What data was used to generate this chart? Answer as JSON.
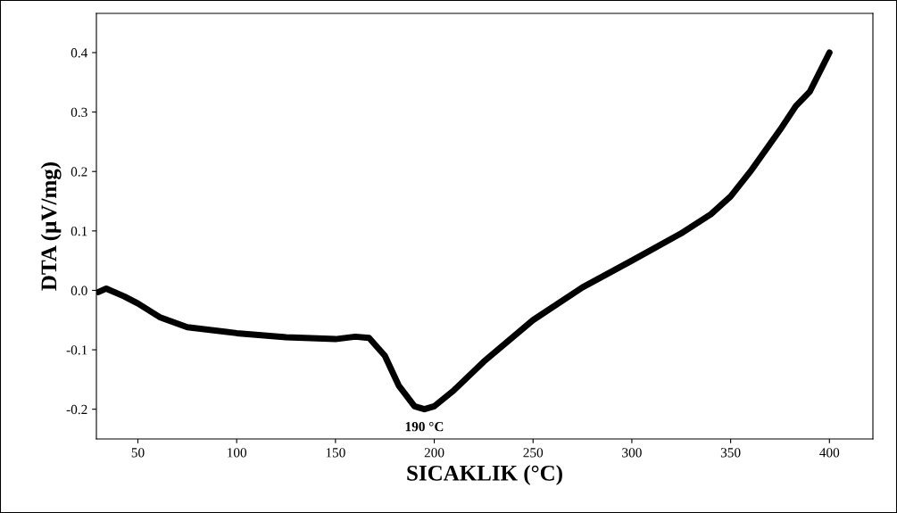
{
  "chart_data": {
    "type": "line",
    "xlabel": "SICAKLIK (°C)",
    "ylabel": "DTA (µV/mg)",
    "x": [
      30,
      34,
      43,
      50,
      61,
      75,
      100,
      125,
      150,
      160,
      167,
      175,
      182,
      190,
      195,
      200,
      210,
      225,
      250,
      275,
      300,
      325,
      340,
      350,
      360,
      375,
      383,
      390,
      400
    ],
    "series": [
      {
        "color": "#000000",
        "values": [
          -0.003,
          0.003,
          -0.01,
          -0.022,
          -0.045,
          -0.062,
          -0.072,
          -0.079,
          -0.082,
          -0.078,
          -0.08,
          -0.11,
          -0.16,
          -0.195,
          -0.2,
          -0.195,
          -0.168,
          -0.12,
          -0.05,
          0.005,
          0.05,
          0.096,
          0.128,
          0.158,
          0.2,
          0.27,
          0.31,
          0.334,
          0.4
        ]
      }
    ],
    "xlim": [
      29,
      422
    ],
    "ylim": [
      -0.25,
      0.466
    ],
    "xticks": [
      50,
      100,
      150,
      200,
      250,
      300,
      350,
      400
    ],
    "yticks": [
      {
        "value": -0.2,
        "label": "-0.2"
      },
      {
        "value": -0.1,
        "label": "-0.1"
      },
      {
        "value": 0.0,
        "label": "0.0"
      },
      {
        "value": 0.1,
        "label": "0.1"
      },
      {
        "value": 0.2,
        "label": "0.2"
      },
      {
        "value": 0.3,
        "label": "0.3"
      },
      {
        "value": 0.4,
        "label": "0.4"
      }
    ],
    "annotations": [
      {
        "text": "190 °C",
        "x": 195,
        "y": -0.2
      }
    ],
    "grid": false,
    "legend": false
  }
}
